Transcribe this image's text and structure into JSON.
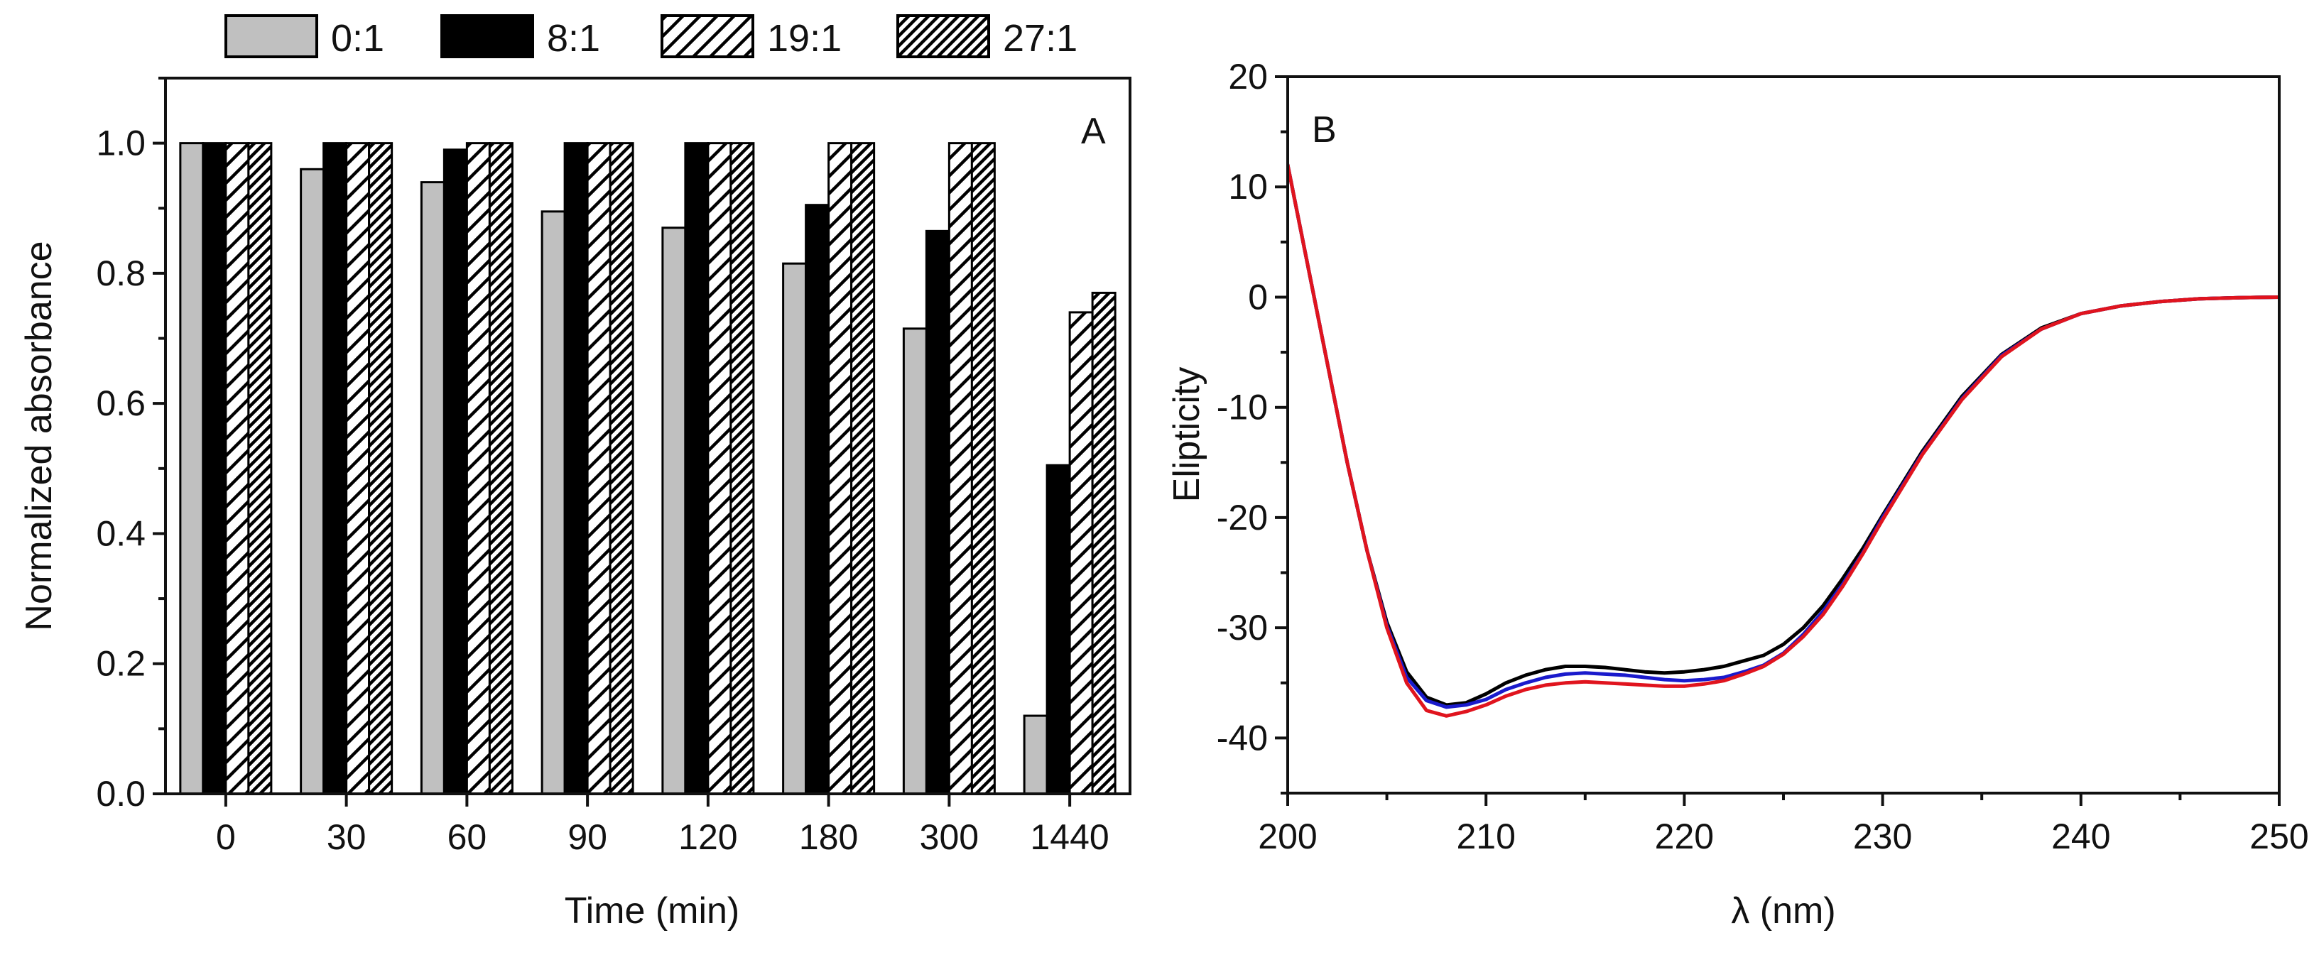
{
  "legend": {
    "entries": [
      {
        "label": "0:1",
        "style": "solid-gray",
        "color": "#c0c0c0"
      },
      {
        "label": "8:1",
        "style": "solid-black",
        "color": "#000000"
      },
      {
        "label": "19:1",
        "style": "hatch-wide",
        "color": "#ffffff"
      },
      {
        "label": "27:1",
        "style": "hatch-dense",
        "color": "#ffffff"
      }
    ]
  },
  "chart_data": [
    {
      "type": "bar",
      "panel": "A",
      "xlabel": "Time (min)",
      "ylabel": "Normalized absorbance",
      "ylim": [
        0.0,
        1.1
      ],
      "yticks": [
        "0.0",
        "0.2",
        "0.4",
        "0.6",
        "0.8",
        "1.0"
      ],
      "categories": [
        "0",
        "30",
        "60",
        "90",
        "120",
        "180",
        "300",
        "1440"
      ],
      "series": [
        {
          "name": "0:1",
          "values": [
            1.0,
            0.96,
            0.94,
            0.895,
            0.87,
            0.815,
            0.715,
            0.12
          ]
        },
        {
          "name": "8:1",
          "values": [
            1.0,
            1.0,
            0.99,
            1.0,
            1.0,
            0.905,
            0.865,
            0.505
          ]
        },
        {
          "name": "19:1",
          "values": [
            1.0,
            1.0,
            1.0,
            1.0,
            1.0,
            1.0,
            1.0,
            0.74
          ]
        },
        {
          "name": "27:1",
          "values": [
            1.0,
            1.0,
            1.0,
            1.0,
            1.0,
            1.0,
            1.0,
            0.77
          ]
        }
      ]
    },
    {
      "type": "line",
      "panel": "B",
      "xlabel": "λ (nm)",
      "ylabel": "Elipticity",
      "xlim": [
        200,
        250
      ],
      "ylim": [
        -45,
        20
      ],
      "xticks": [
        "200",
        "210",
        "220",
        "230",
        "240",
        "250"
      ],
      "yticks": [
        "20",
        "10",
        "0",
        "-10",
        "-20",
        "-30",
        "-40"
      ],
      "series": [
        {
          "name": "black",
          "color": "#000000",
          "x": [
            200,
            201,
            202,
            203,
            204,
            205,
            206,
            207,
            208,
            209,
            210,
            211,
            212,
            213,
            214,
            215,
            216,
            217,
            218,
            219,
            220,
            221,
            222,
            223,
            224,
            225,
            226,
            227,
            228,
            229,
            230,
            232,
            234,
            236,
            238,
            240,
            242,
            244,
            246,
            248,
            250
          ],
          "y": [
            12,
            3,
            -6,
            -15,
            -23,
            -29.5,
            -34,
            -36.3,
            -37,
            -36.8,
            -36,
            -35,
            -34.3,
            -33.8,
            -33.5,
            -33.5,
            -33.6,
            -33.8,
            -34,
            -34.1,
            -34,
            -33.8,
            -33.5,
            -33,
            -32.5,
            -31.5,
            -30,
            -28,
            -25.5,
            -22.8,
            -19.8,
            -14,
            -9,
            -5.2,
            -2.8,
            -1.5,
            -0.8,
            -0.4,
            -0.15,
            -0.05,
            0
          ]
        },
        {
          "name": "blue",
          "color": "#1a1acc",
          "x": [
            200,
            201,
            202,
            203,
            204,
            205,
            206,
            207,
            208,
            209,
            210,
            211,
            212,
            213,
            214,
            215,
            216,
            217,
            218,
            219,
            220,
            221,
            222,
            223,
            224,
            225,
            226,
            227,
            228,
            229,
            230,
            232,
            234,
            236,
            238,
            240,
            242,
            244,
            246,
            248,
            250
          ],
          "y": [
            12,
            3,
            -6,
            -15,
            -23,
            -29.8,
            -34.5,
            -36.6,
            -37.2,
            -37,
            -36.5,
            -35.6,
            -35,
            -34.5,
            -34.2,
            -34.1,
            -34.2,
            -34.3,
            -34.5,
            -34.7,
            -34.8,
            -34.7,
            -34.5,
            -34,
            -33.4,
            -32.3,
            -30.6,
            -28.5,
            -26,
            -23.2,
            -20,
            -14.2,
            -9.2,
            -5.3,
            -2.9,
            -1.5,
            -0.8,
            -0.4,
            -0.15,
            -0.05,
            0
          ]
        },
        {
          "name": "red",
          "color": "#e0141e",
          "x": [
            200,
            201,
            202,
            203,
            204,
            205,
            206,
            207,
            208,
            209,
            210,
            211,
            212,
            213,
            214,
            215,
            216,
            217,
            218,
            219,
            220,
            221,
            222,
            223,
            224,
            225,
            226,
            227,
            228,
            229,
            230,
            232,
            234,
            236,
            238,
            240,
            242,
            244,
            246,
            248,
            250
          ],
          "y": [
            12,
            3,
            -6,
            -15,
            -23,
            -30,
            -35,
            -37.5,
            -38,
            -37.6,
            -37,
            -36.2,
            -35.6,
            -35.2,
            -35,
            -34.9,
            -35,
            -35.1,
            -35.2,
            -35.3,
            -35.3,
            -35.1,
            -34.8,
            -34.2,
            -33.5,
            -32.4,
            -30.8,
            -28.8,
            -26.2,
            -23.3,
            -20.2,
            -14.3,
            -9.3,
            -5.4,
            -2.9,
            -1.5,
            -0.8,
            -0.4,
            -0.15,
            -0.05,
            0
          ]
        }
      ]
    }
  ]
}
